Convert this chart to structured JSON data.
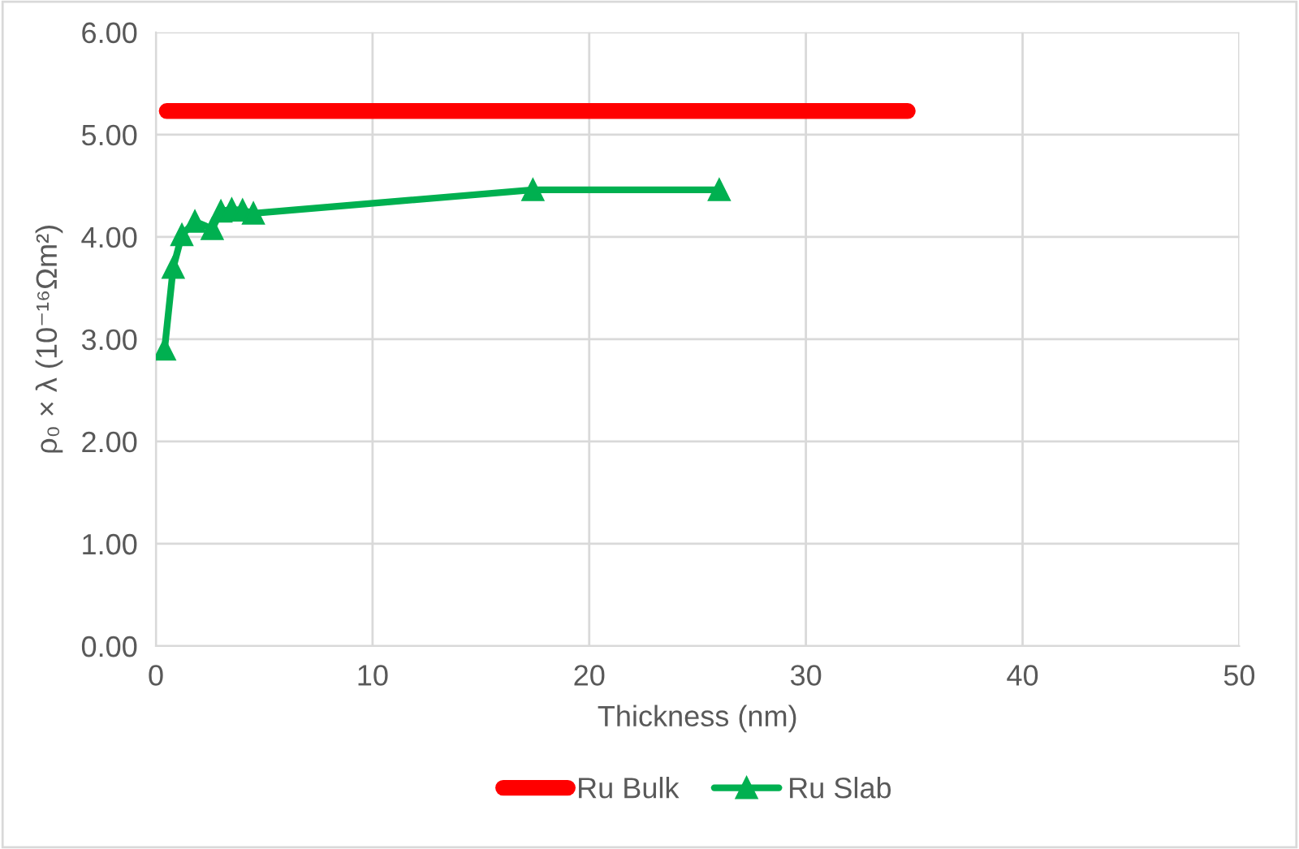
{
  "chart_data": {
    "type": "line",
    "xlabel": "Thickness (nm)",
    "ylabel": "ρ₀ × λ (10⁻¹⁶Ωm²)",
    "series": [
      {
        "name": "Ru Bulk",
        "color": "#ff0000",
        "marker": "none",
        "x": [
          0.5,
          34.7
        ],
        "values": [
          5.23,
          5.23
        ]
      },
      {
        "name": "Ru Slab",
        "color": "#00b050",
        "marker": "triangle",
        "x": [
          0.4,
          0.8,
          1.2,
          1.8,
          2.6,
          3.0,
          3.5,
          4.0,
          4.5,
          17.4,
          26.0
        ],
        "values": [
          2.9,
          3.7,
          4.02,
          4.15,
          4.08,
          4.25,
          4.27,
          4.26,
          4.23,
          4.46,
          4.46
        ]
      }
    ],
    "xlim": [
      0,
      50
    ],
    "xticks": [
      0,
      10,
      20,
      30,
      40,
      50
    ],
    "ylim": [
      0,
      6
    ],
    "yticks": [
      {
        "value": 0,
        "label": "0.00"
      },
      {
        "value": 1,
        "label": "1.00"
      },
      {
        "value": 2,
        "label": "2.00"
      },
      {
        "value": 3,
        "label": "3.00"
      },
      {
        "value": 4,
        "label": "4.00"
      },
      {
        "value": 5,
        "label": "5.00"
      },
      {
        "value": 6,
        "label": "6.00"
      }
    ],
    "grid": true,
    "legend": "bottom",
    "line_style": "solid"
  }
}
